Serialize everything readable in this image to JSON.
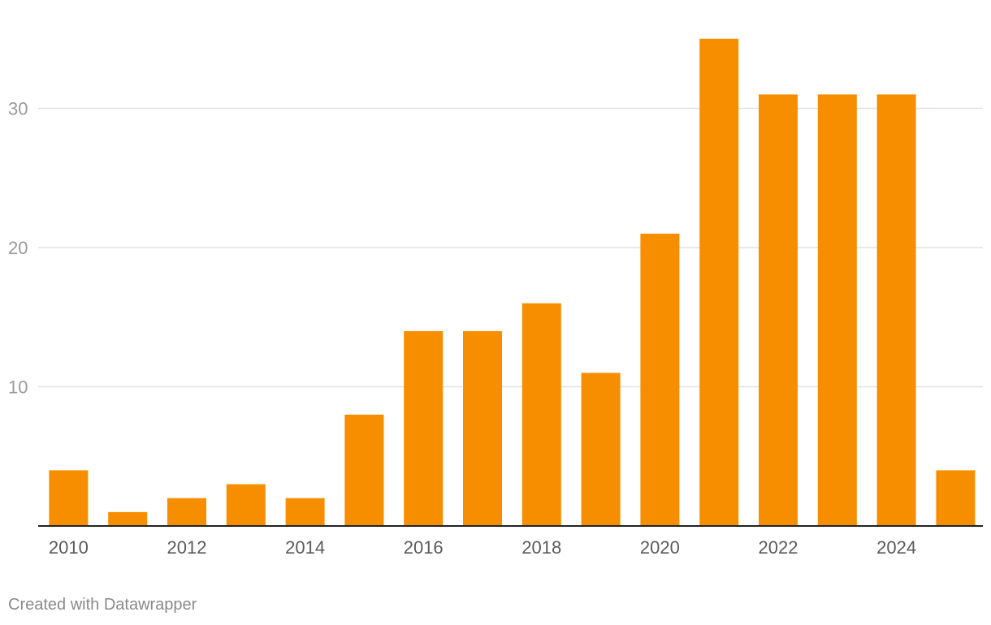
{
  "chart_data": {
    "type": "bar",
    "categories": [
      "2010",
      "2011",
      "2012",
      "2013",
      "2014",
      "2015",
      "2016",
      "2017",
      "2018",
      "2019",
      "2020",
      "2021",
      "2022",
      "2023",
      "2024",
      "2025"
    ],
    "values": [
      4,
      1,
      2,
      3,
      2,
      8,
      14,
      14,
      16,
      11,
      21,
      35,
      31,
      31,
      31,
      4
    ],
    "x_tick_labels": [
      "2010",
      "2012",
      "2014",
      "2016",
      "2018",
      "2020",
      "2022",
      "2024"
    ],
    "y_ticks": [
      10,
      20,
      30
    ],
    "ylim": [
      0,
      35
    ],
    "grid": true,
    "bar_color": "#f78e00",
    "gridline_color": "#e2e2e2",
    "axis_color": "#222222"
  },
  "credit": "Created with Datawrapper"
}
